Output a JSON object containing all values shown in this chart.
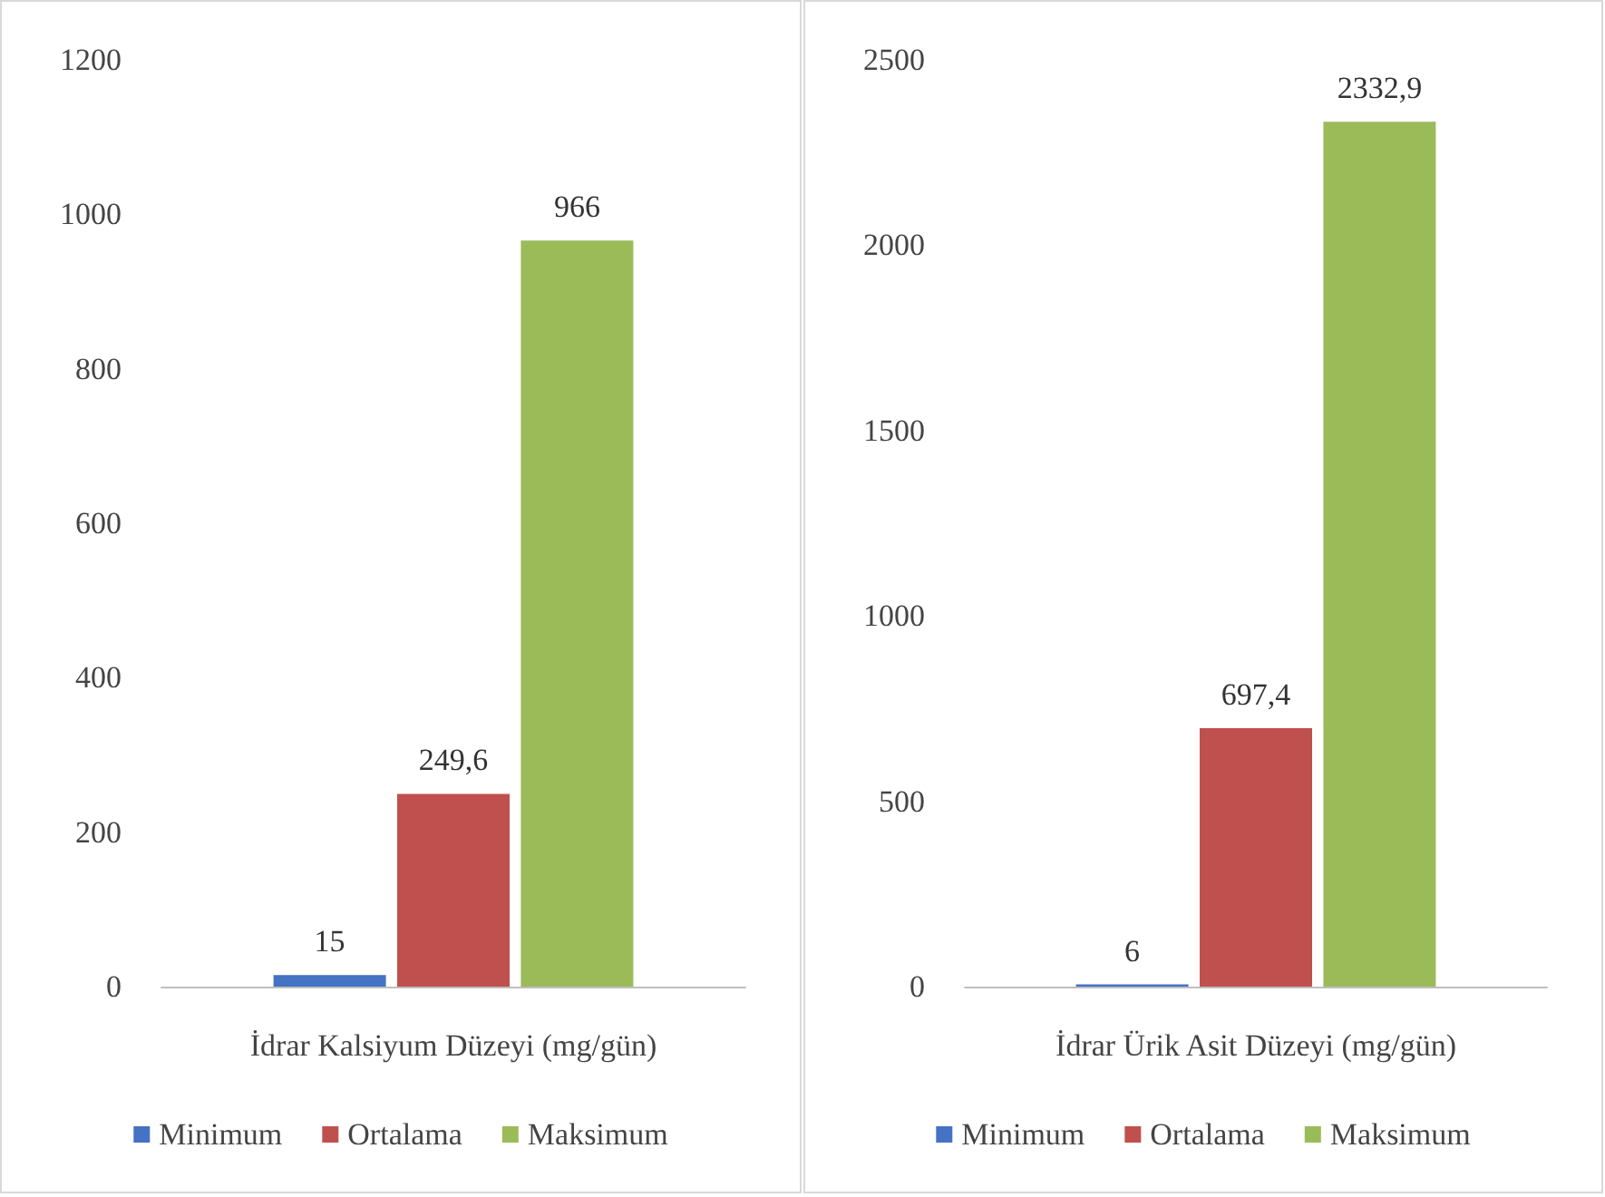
{
  "chart_data": [
    {
      "type": "bar",
      "xlabel": "İdrar Kalsiyum Düzeyi (mg/gün)",
      "categories": [
        null
      ],
      "ylim": [
        0,
        1200
      ],
      "yticks": [
        0,
        200,
        400,
        600,
        800,
        1000,
        1200
      ],
      "grid": false,
      "legend": "bottom",
      "series": [
        {
          "name": "Minimum",
          "color": "#4472c4",
          "values": [
            15
          ],
          "value_labels": [
            "15"
          ]
        },
        {
          "name": "Ortalama",
          "color": "#c0504d",
          "values": [
            249.6
          ],
          "value_labels": [
            "249,6"
          ]
        },
        {
          "name": "Maksimum",
          "color": "#9bbb59",
          "values": [
            966
          ],
          "value_labels": [
            "966"
          ]
        }
      ]
    },
    {
      "type": "bar",
      "xlabel": "İdrar Ürik Asit Düzeyi (mg/gün)",
      "categories": [
        null
      ],
      "ylim": [
        0,
        2500
      ],
      "yticks": [
        0,
        500,
        1000,
        1500,
        2000,
        2500
      ],
      "grid": false,
      "legend": "bottom",
      "series": [
        {
          "name": "Minimum",
          "color": "#4472c4",
          "values": [
            6
          ],
          "value_labels": [
            "6"
          ]
        },
        {
          "name": "Ortalama",
          "color": "#c0504d",
          "values": [
            697.4
          ],
          "value_labels": [
            "697,4"
          ]
        },
        {
          "name": "Maksimum",
          "color": "#9bbb59",
          "values": [
            2332.9
          ],
          "value_labels": [
            "2332,9"
          ]
        }
      ]
    }
  ]
}
